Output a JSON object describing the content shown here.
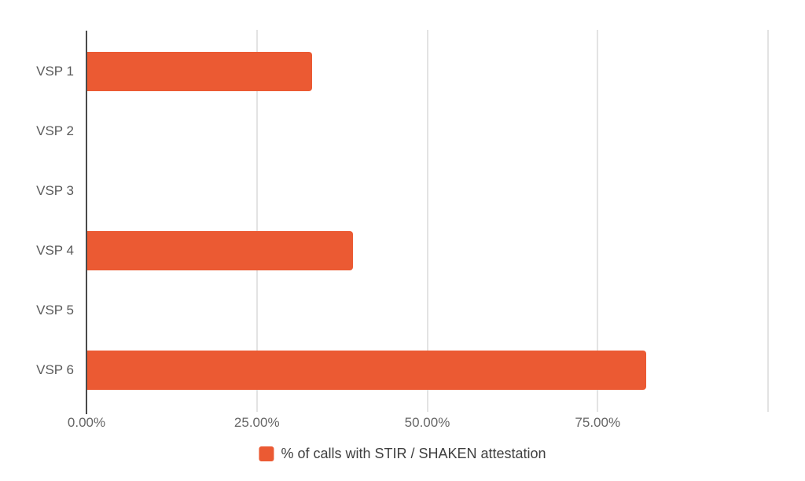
{
  "chart_data": {
    "type": "bar",
    "orientation": "horizontal",
    "title": "",
    "xlabel": "",
    "ylabel": "",
    "categories": [
      "VSP 1",
      "VSP 2",
      "VSP 3",
      "VSP 4",
      "VSP 5",
      "VSP 6"
    ],
    "series": [
      {
        "name": "% of calls with STIR / SHAKEN attestation",
        "values": [
          33,
          0,
          0,
          39,
          0,
          82
        ]
      }
    ],
    "x_axis": {
      "range": [
        0,
        100
      ],
      "unit": "%",
      "tick_values": [
        0,
        25,
        50,
        75
      ],
      "tick_labels": [
        "0.00%",
        "25.00%",
        "50.00%",
        "75.00%"
      ],
      "gridline_values": [
        25,
        50,
        75,
        100
      ],
      "grid": true
    },
    "legend": {
      "position": "bottom",
      "items": [
        {
          "label": "% of calls with STIR / SHAKEN attestation",
          "color": "#EB5A33"
        }
      ]
    },
    "colors": {
      "bar": "#EB5A33",
      "axis_line": "#4A4A4A",
      "gridline": "#E3E3E3",
      "category_label": "#5A5A5A",
      "tick_label": "#666666",
      "legend_label": "#3F3F3F",
      "background": "#FFFFFF"
    }
  }
}
